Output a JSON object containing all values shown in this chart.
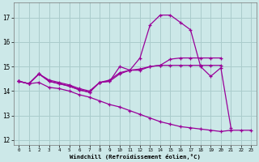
{
  "xlabel": "Windchill (Refroidissement éolien,°C)",
  "background_color": "#cce8e8",
  "grid_color": "#aacccc",
  "line_color": "#990099",
  "xlim": [
    -0.5,
    23.5
  ],
  "ylim": [
    11.8,
    17.6
  ],
  "yticks": [
    12,
    13,
    14,
    15,
    16,
    17
  ],
  "xticks": [
    0,
    1,
    2,
    3,
    4,
    5,
    6,
    7,
    8,
    9,
    10,
    11,
    12,
    13,
    14,
    15,
    16,
    17,
    18,
    19,
    20,
    21,
    22,
    23
  ],
  "series": [
    {
      "x": [
        0,
        1,
        2,
        3,
        4,
        5,
        6,
        7,
        8,
        9,
        10,
        11,
        12,
        13,
        14,
        15,
        16,
        17,
        18,
        19,
        20,
        21,
        22,
        23
      ],
      "y": [
        14.4,
        14.3,
        14.7,
        14.4,
        14.3,
        14.2,
        14.05,
        13.95,
        14.35,
        14.4,
        15.0,
        14.85,
        15.35,
        16.7,
        17.1,
        17.1,
        16.8,
        16.5,
        15.0,
        14.6,
        14.95,
        12.5,
        null,
        null
      ]
    },
    {
      "x": [
        0,
        1,
        2,
        3,
        4,
        5,
        6,
        7,
        8,
        9,
        10,
        11,
        12,
        13,
        14,
        15,
        16,
        17,
        18,
        19,
        20,
        21,
        22,
        23
      ],
      "y": [
        14.4,
        14.3,
        14.7,
        14.45,
        14.35,
        14.25,
        14.1,
        14.0,
        14.35,
        14.45,
        14.75,
        14.85,
        14.9,
        15.0,
        15.05,
        15.3,
        15.35,
        15.35,
        15.35,
        15.35,
        15.35,
        null,
        null,
        null
      ]
    },
    {
      "x": [
        0,
        1,
        2,
        3,
        4,
        5,
        6,
        7,
        8,
        9,
        10,
        11,
        12,
        13,
        14,
        15,
        16,
        17,
        18,
        19,
        20,
        21,
        22,
        23
      ],
      "y": [
        14.4,
        14.3,
        14.7,
        14.4,
        14.3,
        14.2,
        14.05,
        13.95,
        14.35,
        14.4,
        14.7,
        14.85,
        14.85,
        15.0,
        15.05,
        15.05,
        15.05,
        15.05,
        15.05,
        15.05,
        15.05,
        null,
        null,
        null
      ]
    },
    {
      "x": [
        0,
        1,
        2,
        3,
        4,
        5,
        6,
        7,
        8,
        9,
        10,
        11,
        12,
        13,
        14,
        15,
        16,
        17,
        18,
        19,
        20,
        21,
        22,
        23
      ],
      "y": [
        14.4,
        14.3,
        14.35,
        14.15,
        14.1,
        14.0,
        13.85,
        13.75,
        13.6,
        13.45,
        13.35,
        13.2,
        13.05,
        12.9,
        12.75,
        12.65,
        12.55,
        12.5,
        12.45,
        12.4,
        12.35,
        12.4,
        12.4,
        12.4
      ]
    }
  ]
}
